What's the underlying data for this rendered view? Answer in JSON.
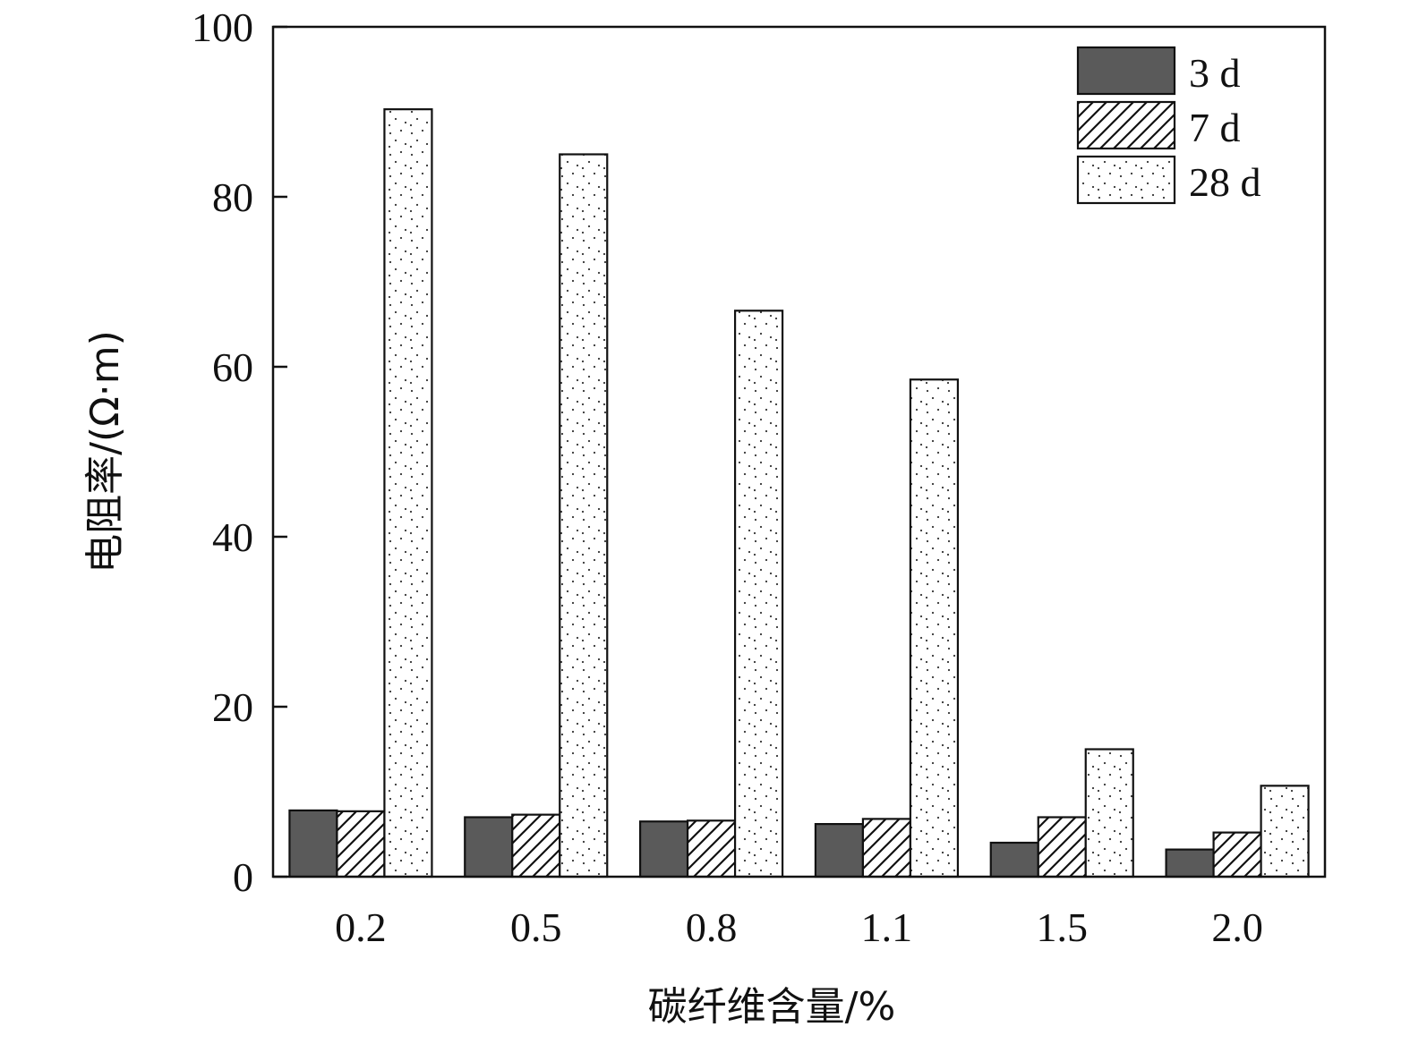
{
  "chart_data": {
    "type": "bar",
    "title": "",
    "xlabel": "碳纤维含量/%",
    "ylabel": "电阻率/(Ω·m)",
    "categories": [
      "0.2",
      "0.5",
      "0.8",
      "1.1",
      "1.5",
      "2.0"
    ],
    "ylim": [
      0,
      100
    ],
    "yticks": [
      "0",
      "20",
      "40",
      "60",
      "80",
      "100"
    ],
    "grid": false,
    "legend_position": "top-right",
    "series": [
      {
        "name": "3 d",
        "values": [
          7.8,
          7.0,
          6.5,
          6.2,
          4.0,
          3.2
        ],
        "pattern": "solid",
        "color": "#5a5a5a"
      },
      {
        "name": "7 d",
        "values": [
          7.7,
          7.3,
          6.6,
          6.8,
          7.0,
          5.2
        ],
        "pattern": "hatch",
        "color": "#ffffff"
      },
      {
        "name": "28 d",
        "values": [
          90.3,
          85.0,
          66.6,
          58.5,
          15.0,
          10.7
        ],
        "pattern": "dots",
        "color": "#ffffff"
      }
    ]
  }
}
